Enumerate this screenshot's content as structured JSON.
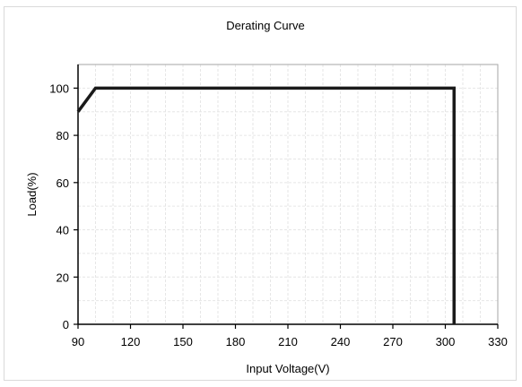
{
  "chart_data": {
    "type": "line",
    "title": "Derating Curve",
    "xlabel": "Input Voltage(V)",
    "ylabel": "Load(%)",
    "xlim": [
      90,
      330
    ],
    "ylim": [
      0,
      110
    ],
    "x_ticks": [
      90,
      120,
      150,
      180,
      210,
      240,
      270,
      300,
      330
    ],
    "y_ticks": [
      0,
      20,
      40,
      60,
      80,
      100
    ],
    "grid": true,
    "series": [
      {
        "x": [
          90,
          100,
          305,
          305
        ],
        "y": [
          90,
          100,
          100,
          0
        ]
      }
    ],
    "colors": {
      "line": "#1a1a1a",
      "axis": "#000000",
      "grid": "#e6e6e6",
      "plot_border": "#a6a6a6"
    }
  }
}
